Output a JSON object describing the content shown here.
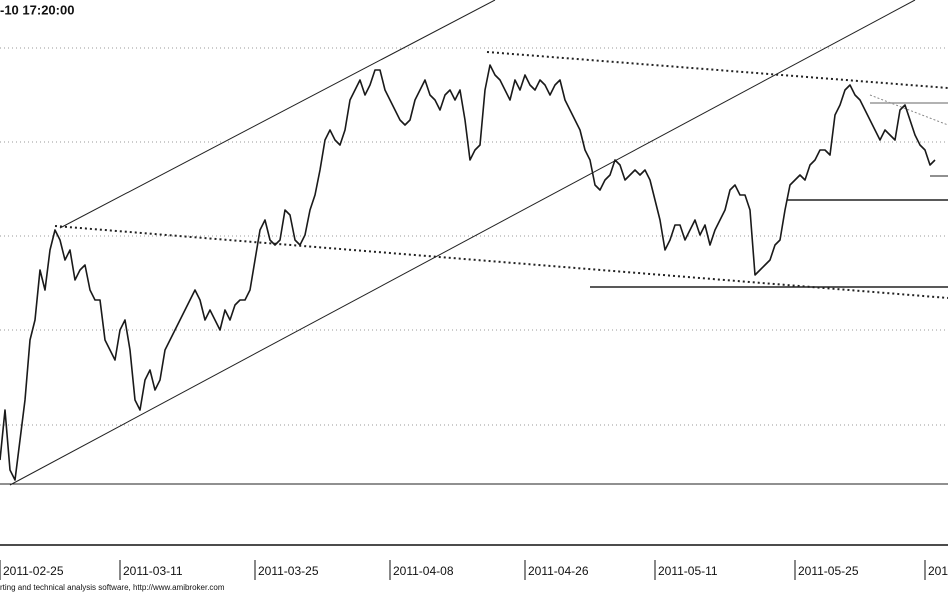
{
  "chart_data": {
    "type": "line",
    "title": "-10 17:20:00",
    "footer": "rting and technical analysis software, http://www.amibroker.com",
    "color": "#1a1a1a",
    "values": [
      85,
      135,
      75,
      65,
      105,
      145,
      205,
      225,
      275,
      255,
      295,
      315,
      305,
      285,
      295,
      265,
      275,
      280,
      255,
      245,
      245,
      205,
      195,
      185,
      215,
      225,
      195,
      145,
      135,
      165,
      175,
      155,
      165,
      195,
      205,
      215,
      225,
      235,
      245,
      255,
      245,
      225,
      235,
      225,
      215,
      235,
      225,
      240,
      245,
      245,
      255,
      285,
      315,
      325,
      305,
      300,
      305,
      335,
      330,
      305,
      300,
      310,
      335,
      350,
      375,
      405,
      415,
      405,
      400,
      415,
      445,
      455,
      465,
      450,
      460,
      475,
      475,
      455,
      445,
      435,
      425,
      420,
      425,
      445,
      455,
      465,
      450,
      445,
      435,
      450,
      455,
      445,
      455,
      425,
      385,
      395,
      400,
      455,
      480,
      470,
      465,
      455,
      445,
      465,
      455,
      470,
      460,
      455,
      465,
      460,
      450,
      460,
      465,
      445,
      435,
      425,
      415,
      395,
      385,
      360,
      355,
      365,
      370,
      385,
      380,
      365,
      370,
      375,
      370,
      375,
      365,
      345,
      325,
      295,
      305,
      320,
      320,
      305,
      315,
      325,
      310,
      320,
      300,
      315,
      325,
      335,
      355,
      360,
      350,
      350,
      335,
      270,
      275,
      280,
      285,
      300,
      305,
      335,
      360,
      365,
      370,
      365,
      380,
      385,
      395,
      395,
      390,
      430,
      440,
      455,
      460,
      450,
      445,
      435,
      425,
      415,
      405,
      415,
      410,
      405,
      435,
      440,
      425,
      410,
      400,
      395,
      380,
      385
    ],
    "ylim": [
      0,
      545
    ],
    "xticks": [
      {
        "value": 0,
        "label": "2011-02-25"
      },
      {
        "value": 24,
        "label": "2011-03-11"
      },
      {
        "value": 51,
        "label": "2011-03-25"
      },
      {
        "value": 78,
        "label": "2011-04-08"
      },
      {
        "value": 105,
        "label": "2011-04-26"
      },
      {
        "value": 131,
        "label": "2011-05-11"
      },
      {
        "value": 159,
        "label": "2011-05-25"
      },
      {
        "value": 185,
        "label": "201"
      }
    ]
  }
}
